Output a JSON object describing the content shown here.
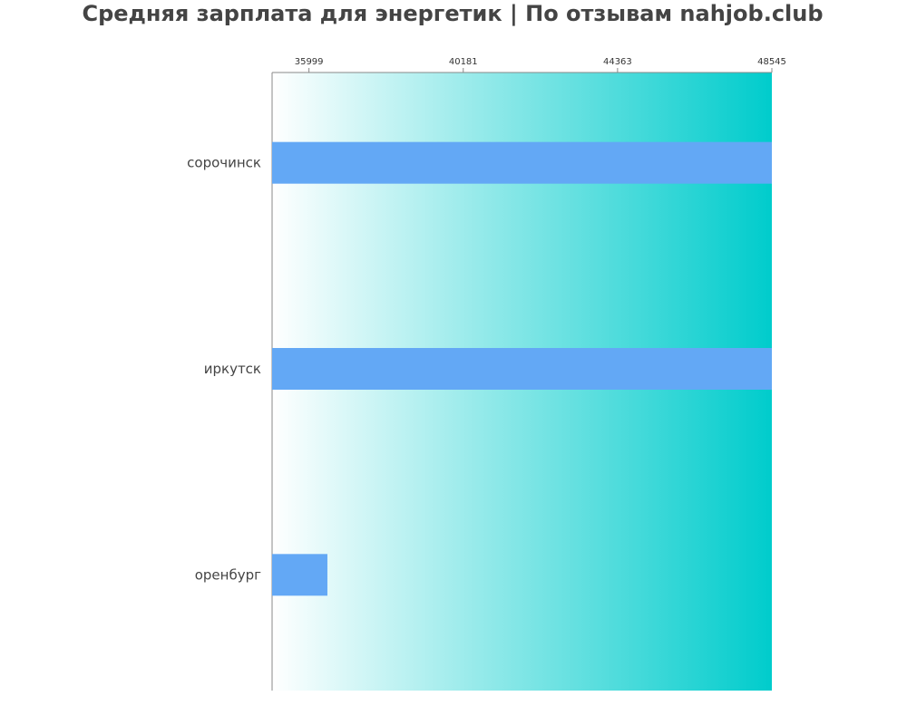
{
  "chart_data": {
    "type": "bar",
    "orientation": "horizontal",
    "title": "Средняя зарплата для энергетик | По отзывам nahjob.club",
    "xlabel": "",
    "ylabel": "",
    "categories": [
      "сорочинск",
      "иркутск",
      "оренбург"
    ],
    "values": [
      48545,
      48545,
      36499
    ],
    "xlim": [
      35000,
      48545
    ],
    "x_ticks": [
      35999,
      40181,
      44363,
      48545
    ],
    "x_axis_position": "top",
    "grid": false,
    "legend": "none",
    "colors": {
      "bar": "#63a8f5",
      "background_start": "#ffffff",
      "background_end": "#00cccc",
      "axis": "#888888"
    }
  }
}
